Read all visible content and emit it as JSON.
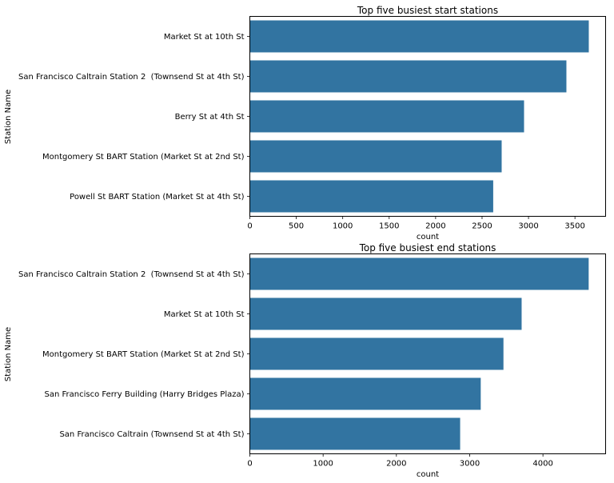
{
  "chart_data": [
    {
      "type": "bar",
      "orientation": "horizontal",
      "title": "Top five busiest start stations",
      "xlabel": "count",
      "ylabel": "Station Name",
      "categories": [
        "Market St at 10th St",
        "San Francisco Caltrain Station 2  (Townsend St at 4th St)",
        "Berry St at 4th St",
        "Montgomery St BART Station (Market St at 2nd St)",
        "Powell St BART Station (Market St at 4th St)"
      ],
      "values": [
        3649,
        3408,
        2952,
        2711,
        2620
      ],
      "xlim": [
        0,
        3830
      ],
      "xticks": [
        0,
        500,
        1000,
        1500,
        2000,
        2500,
        3000,
        3500
      ],
      "bar_color": "#3274a1",
      "grid": false
    },
    {
      "type": "bar",
      "orientation": "horizontal",
      "title": "Top five busiest end stations",
      "xlabel": "count",
      "ylabel": "Station Name",
      "categories": [
        "San Francisco Caltrain Station 2  (Townsend St at 4th St)",
        "Market St at 10th St",
        "Montgomery St BART Station (Market St at 2nd St)",
        "San Francisco Ferry Building (Harry Bridges Plaza)",
        "San Francisco Caltrain (Townsend St at 4th St)"
      ],
      "values": [
        4624,
        3709,
        3461,
        3151,
        2870
      ],
      "xlim": [
        0,
        4855
      ],
      "xticks": [
        0,
        1000,
        2000,
        3000,
        4000
      ],
      "bar_color": "#3274a1",
      "grid": false
    }
  ]
}
